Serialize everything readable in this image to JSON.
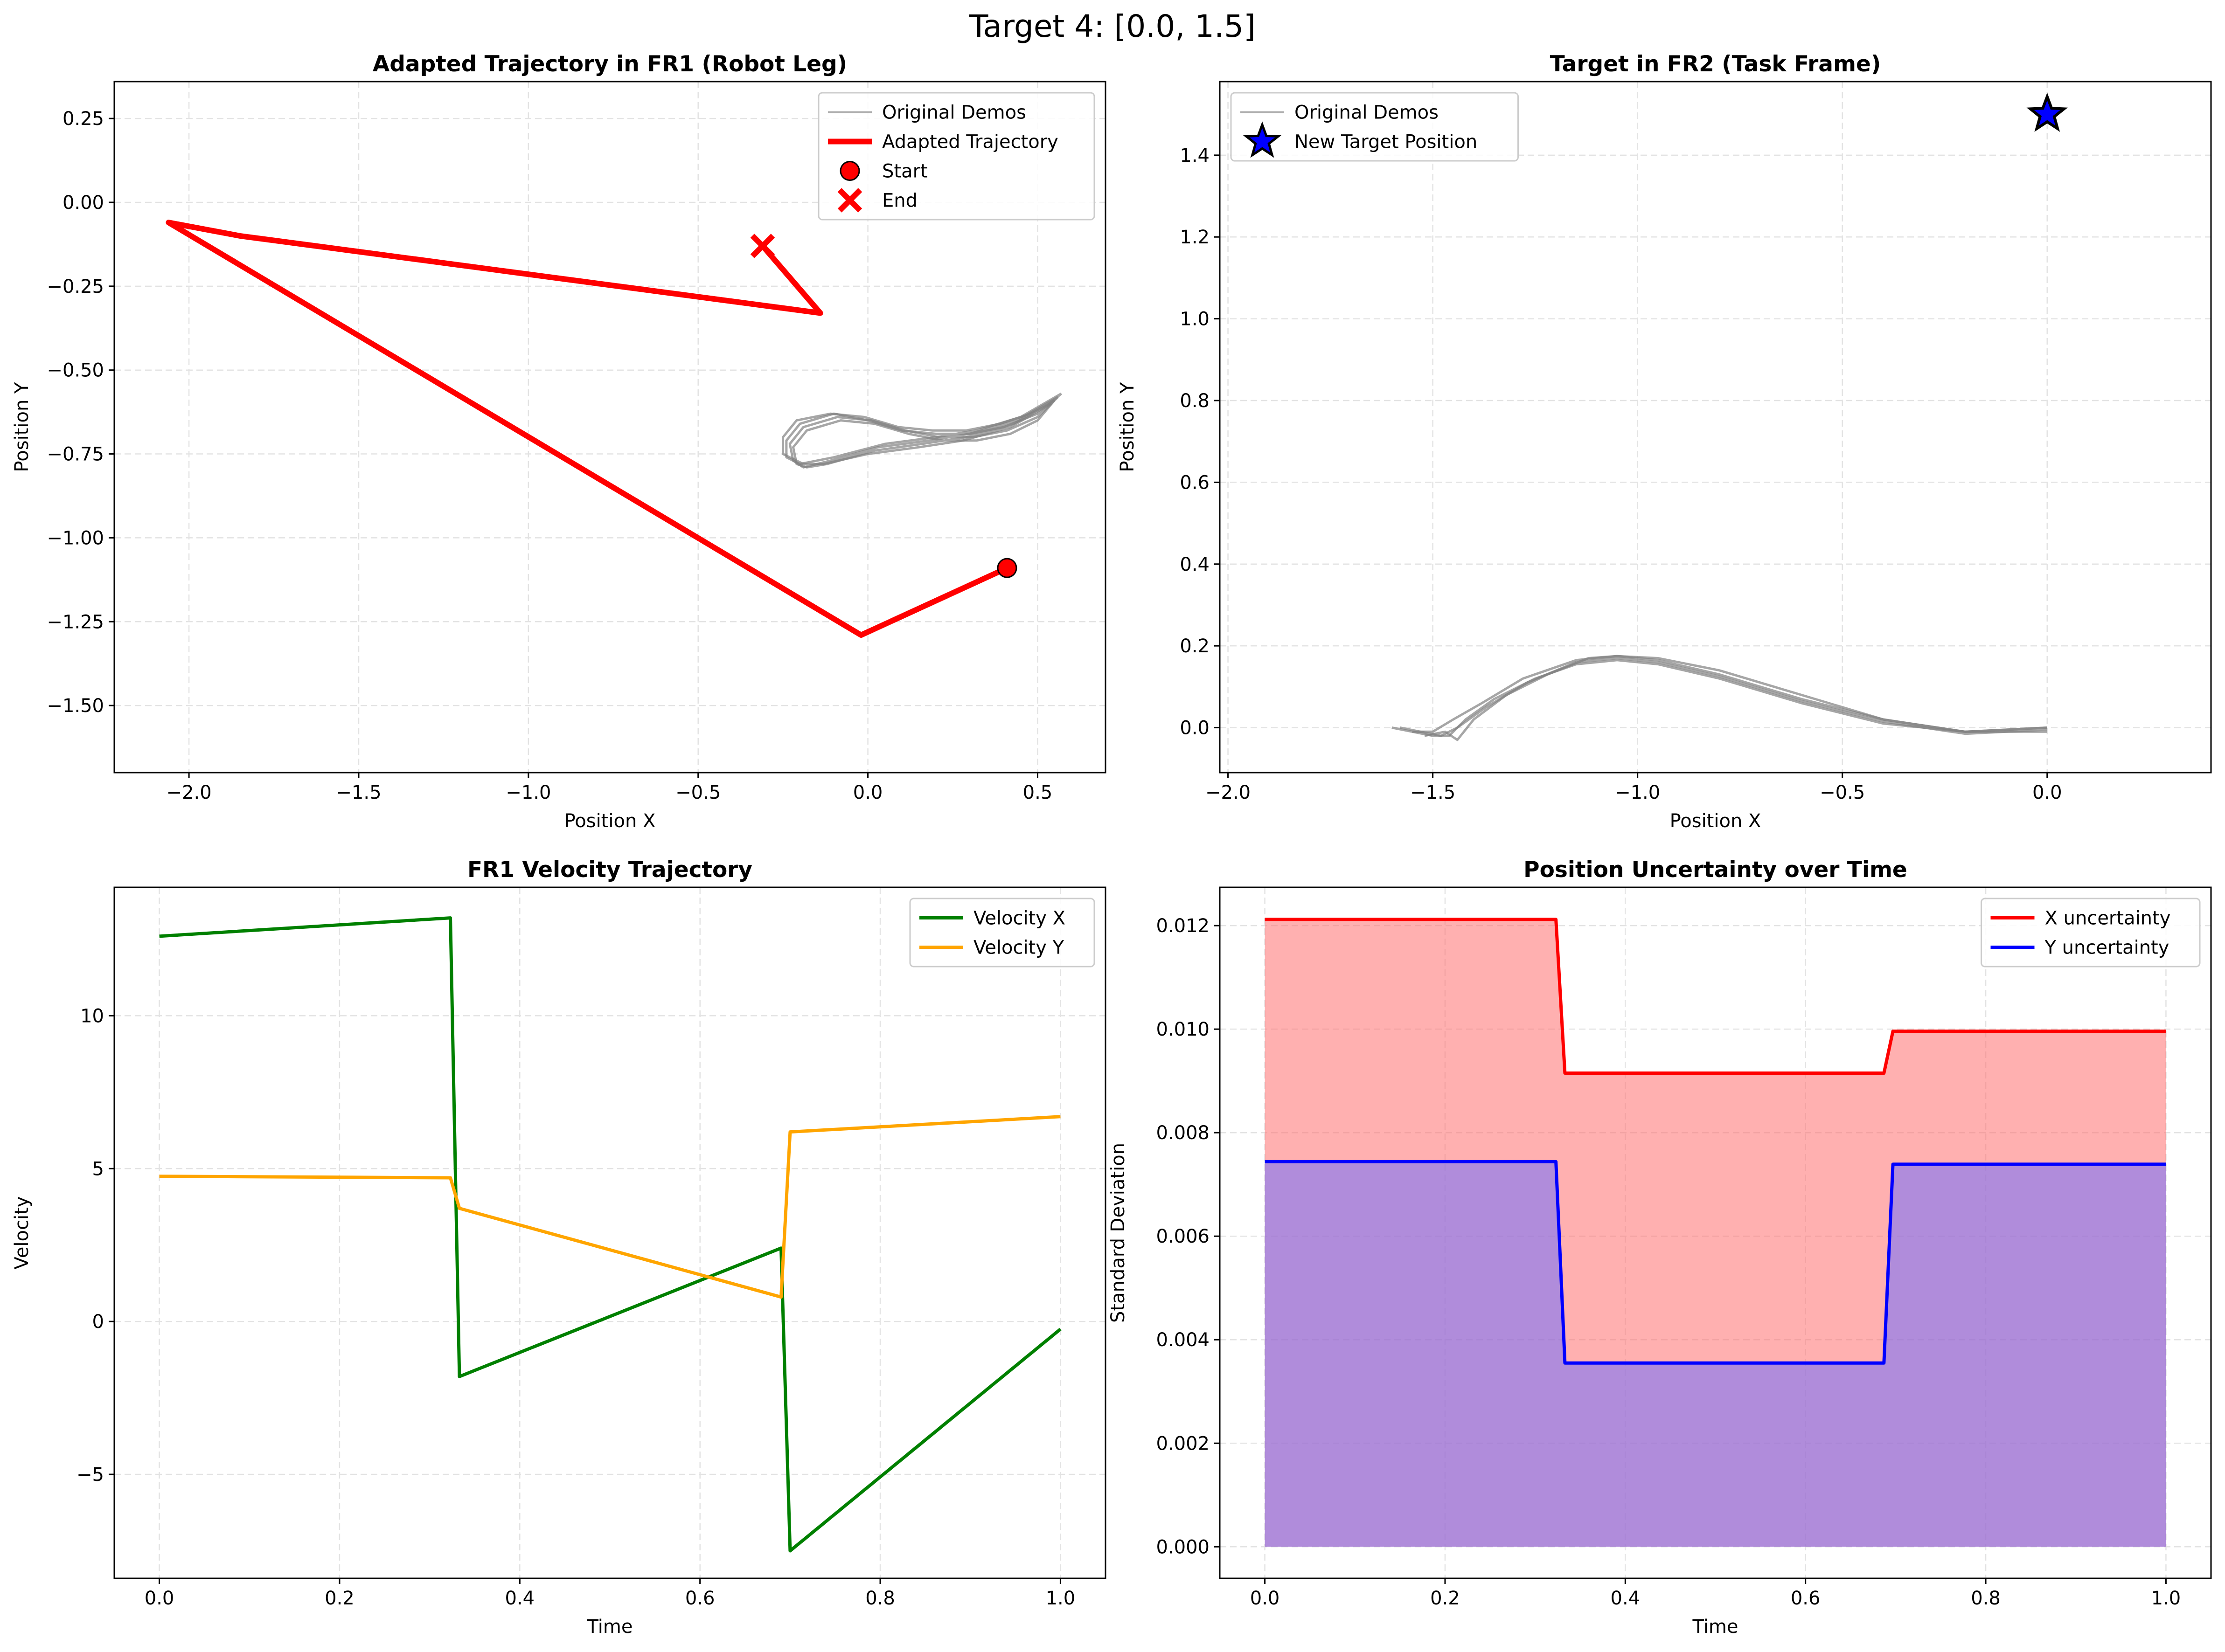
{
  "figure": {
    "suptitle": "Target 4: [0.0, 1.5]"
  },
  "chart_data": [
    {
      "id": "p1",
      "type": "line",
      "title": "Adapted Trajectory in FR1 (Robot Leg)",
      "xlabel": "Position X",
      "ylabel": "Position Y",
      "xlim": [
        -2.22,
        0.7
      ],
      "ylim": [
        -1.7,
        0.36
      ],
      "xticks": [
        -2.0,
        -1.5,
        -1.0,
        -0.5,
        0.0,
        0.5
      ],
      "xtick_labels": [
        "−2.0",
        "−1.5",
        "−1.0",
        "−0.5",
        "0.0",
        "0.5"
      ],
      "yticks": [
        0.25,
        0.0,
        -0.25,
        -0.5,
        -0.75,
        -1.0,
        -1.25,
        -1.5
      ],
      "ytick_labels": [
        "0.25",
        "0.00",
        "−0.25",
        "−0.50",
        "−0.75",
        "−1.00",
        "−1.25",
        "−1.50"
      ],
      "grid": true,
      "legend_position": "upper right",
      "legend": [
        {
          "label": "Original Demos",
          "kind": "line",
          "color": "#b0b0b0",
          "width": 4
        },
        {
          "label": "Adapted Trajectory",
          "kind": "line",
          "color": "#ff0000",
          "width": 12
        },
        {
          "label": "Start",
          "kind": "circle",
          "color": "#ff0000"
        },
        {
          "label": "End",
          "kind": "cross",
          "color": "#ff0000"
        }
      ],
      "demos": {
        "color": "#808080",
        "curves": [
          [
            [
              0.57,
              -0.57
            ],
            [
              0.45,
              -0.64
            ],
            [
              0.32,
              -0.68
            ],
            [
              0.2,
              -0.7
            ],
            [
              0.05,
              -0.72
            ],
            [
              -0.1,
              -0.76
            ],
            [
              -0.2,
              -0.78
            ],
            [
              -0.24,
              -0.76
            ],
            [
              -0.24,
              -0.71
            ],
            [
              -0.2,
              -0.66
            ],
            [
              -0.1,
              -0.63
            ],
            [
              0.0,
              -0.65
            ],
            [
              0.1,
              -0.68
            ],
            [
              0.2,
              -0.69
            ],
            [
              0.3,
              -0.69
            ],
            [
              0.4,
              -0.67
            ],
            [
              0.5,
              -0.63
            ],
            [
              0.57,
              -0.57
            ]
          ],
          [
            [
              0.56,
              -0.58
            ],
            [
              0.44,
              -0.65
            ],
            [
              0.3,
              -0.69
            ],
            [
              0.18,
              -0.71
            ],
            [
              0.03,
              -0.73
            ],
            [
              -0.11,
              -0.77
            ],
            [
              -0.19,
              -0.79
            ],
            [
              -0.22,
              -0.77
            ],
            [
              -0.23,
              -0.72
            ],
            [
              -0.19,
              -0.67
            ],
            [
              -0.09,
              -0.64
            ],
            [
              0.01,
              -0.65
            ],
            [
              0.11,
              -0.68
            ],
            [
              0.21,
              -0.7
            ],
            [
              0.31,
              -0.7
            ],
            [
              0.41,
              -0.68
            ],
            [
              0.5,
              -0.64
            ],
            [
              0.56,
              -0.58
            ]
          ],
          [
            [
              0.55,
              -0.59
            ],
            [
              0.43,
              -0.66
            ],
            [
              0.29,
              -0.7
            ],
            [
              0.16,
              -0.72
            ],
            [
              0.02,
              -0.74
            ],
            [
              -0.12,
              -0.78
            ],
            [
              -0.18,
              -0.79
            ],
            [
              -0.21,
              -0.78
            ],
            [
              -0.22,
              -0.73
            ],
            [
              -0.18,
              -0.68
            ],
            [
              -0.08,
              -0.65
            ],
            [
              0.02,
              -0.66
            ],
            [
              0.12,
              -0.69
            ],
            [
              0.22,
              -0.71
            ],
            [
              0.32,
              -0.71
            ],
            [
              0.42,
              -0.69
            ],
            [
              0.5,
              -0.65
            ],
            [
              0.55,
              -0.59
            ]
          ],
          [
            [
              0.54,
              -0.6
            ],
            [
              0.42,
              -0.67
            ],
            [
              0.28,
              -0.71
            ],
            [
              0.15,
              -0.73
            ],
            [
              0.0,
              -0.75
            ],
            [
              -0.13,
              -0.78
            ],
            [
              -0.19,
              -0.78
            ],
            [
              -0.25,
              -0.75
            ],
            [
              -0.25,
              -0.7
            ],
            [
              -0.21,
              -0.65
            ],
            [
              -0.11,
              -0.63
            ],
            [
              -0.01,
              -0.64
            ],
            [
              0.09,
              -0.67
            ],
            [
              0.19,
              -0.68
            ],
            [
              0.29,
              -0.68
            ],
            [
              0.39,
              -0.66
            ],
            [
              0.48,
              -0.63
            ],
            [
              0.54,
              -0.6
            ]
          ]
        ]
      },
      "adapted": {
        "color": "#ff0000",
        "points": [
          [
            0.41,
            -1.09
          ],
          [
            -0.02,
            -1.29
          ],
          [
            -2.06,
            -0.06
          ],
          [
            -1.85,
            -0.1
          ],
          [
            -0.14,
            -0.33
          ],
          [
            -0.31,
            -0.13
          ]
        ]
      },
      "start": [
        0.41,
        -1.09
      ],
      "end": [
        -0.31,
        -0.13
      ]
    },
    {
      "id": "p2",
      "type": "line",
      "title": "Target in FR2 (Task Frame)",
      "xlabel": "Position X",
      "ylabel": "Position Y",
      "xlim": [
        -2.02,
        0.4
      ],
      "ylim": [
        -0.11,
        1.58
      ],
      "xticks": [
        -2.0,
        -1.5,
        -1.0,
        -0.5,
        0.0
      ],
      "xtick_labels": [
        "−2.0",
        "−1.5",
        "−1.0",
        "−0.5",
        "0.0"
      ],
      "yticks": [
        0.0,
        0.2,
        0.4,
        0.6,
        0.8,
        1.0,
        1.2,
        1.4
      ],
      "ytick_labels": [
        "0.0",
        "0.2",
        "0.4",
        "0.6",
        "0.8",
        "1.0",
        "1.2",
        "1.4"
      ],
      "grid": true,
      "legend_position": "upper left",
      "legend": [
        {
          "label": "Original Demos",
          "kind": "line",
          "color": "#b0b0b0",
          "width": 4
        },
        {
          "label": "New Target Position",
          "kind": "star",
          "color": "#0000ff"
        }
      ],
      "demos": {
        "color": "#808080",
        "curves": [
          [
            [
              0.0,
              0.0
            ],
            [
              -0.2,
              -0.01
            ],
            [
              -0.4,
              0.02
            ],
            [
              -0.6,
              0.07
            ],
            [
              -0.8,
              0.13
            ],
            [
              -0.95,
              0.165
            ],
            [
              -1.05,
              0.175
            ],
            [
              -1.15,
              0.165
            ],
            [
              -1.28,
              0.12
            ],
            [
              -1.38,
              0.06
            ],
            [
              -1.45,
              0.02
            ],
            [
              -1.5,
              -0.01
            ],
            [
              -1.55,
              -0.01
            ],
            [
              -1.6,
              0.0
            ]
          ],
          [
            [
              0.0,
              -0.01
            ],
            [
              -0.2,
              -0.01
            ],
            [
              -0.4,
              0.01
            ],
            [
              -0.6,
              0.06
            ],
            [
              -0.8,
              0.12
            ],
            [
              -0.95,
              0.155
            ],
            [
              -1.05,
              0.165
            ],
            [
              -1.15,
              0.155
            ],
            [
              -1.25,
              0.12
            ],
            [
              -1.35,
              0.07
            ],
            [
              -1.42,
              0.02
            ],
            [
              -1.46,
              -0.02
            ],
            [
              -1.5,
              -0.02
            ],
            [
              -1.55,
              -0.01
            ]
          ],
          [
            [
              0.0,
              0.0
            ],
            [
              -0.2,
              -0.01
            ],
            [
              -0.4,
              0.02
            ],
            [
              -0.6,
              0.08
            ],
            [
              -0.8,
              0.14
            ],
            [
              -0.95,
              0.17
            ],
            [
              -1.05,
              0.175
            ],
            [
              -1.12,
              0.17
            ],
            [
              -1.22,
              0.13
            ],
            [
              -1.32,
              0.08
            ],
            [
              -1.4,
              0.02
            ],
            [
              -1.44,
              -0.03
            ],
            [
              -1.47,
              -0.01
            ],
            [
              -1.52,
              -0.02
            ]
          ],
          [
            [
              0.0,
              -0.005
            ],
            [
              -0.2,
              -0.015
            ],
            [
              -0.4,
              0.015
            ],
            [
              -0.6,
              0.065
            ],
            [
              -0.8,
              0.125
            ],
            [
              -0.95,
              0.16
            ],
            [
              -1.05,
              0.17
            ],
            [
              -1.15,
              0.16
            ],
            [
              -1.27,
              0.11
            ],
            [
              -1.37,
              0.05
            ],
            [
              -1.44,
              0.0
            ],
            [
              -1.48,
              -0.02
            ],
            [
              -1.53,
              -0.01
            ],
            [
              -1.58,
              0.0
            ]
          ]
        ]
      },
      "target": [
        0.0,
        1.5
      ]
    },
    {
      "id": "p3",
      "type": "line",
      "title": "FR1 Velocity Trajectory",
      "xlabel": "Time",
      "ylabel": "Velocity",
      "xlim": [
        -0.05,
        1.05
      ],
      "ylim": [
        -8.4,
        14.2
      ],
      "xticks": [
        0.0,
        0.2,
        0.4,
        0.6,
        0.8,
        1.0
      ],
      "xtick_labels": [
        "0.0",
        "0.2",
        "0.4",
        "0.6",
        "0.8",
        "1.0"
      ],
      "yticks": [
        10,
        5,
        0,
        -5
      ],
      "ytick_labels": [
        "10",
        "5",
        "0",
        "−5"
      ],
      "grid": true,
      "legend_position": "upper right",
      "series": [
        {
          "name": "Velocity X",
          "color": "#008000",
          "x": [
            0.0,
            0.323,
            0.333,
            0.69,
            0.7,
            1.0
          ],
          "y": [
            12.6,
            13.2,
            -1.8,
            2.4,
            -7.5,
            -0.25
          ]
        },
        {
          "name": "Velocity Y",
          "color": "#ffa500",
          "x": [
            0.0,
            0.323,
            0.333,
            0.69,
            0.7,
            1.0
          ],
          "y": [
            4.75,
            4.7,
            3.7,
            0.8,
            6.2,
            6.7
          ]
        }
      ]
    },
    {
      "id": "p4",
      "type": "area",
      "title": "Position Uncertainty over Time",
      "xlabel": "Time",
      "ylabel": "Standard Deviation",
      "xlim": [
        -0.05,
        1.05
      ],
      "ylim": [
        -0.00061,
        0.01274
      ],
      "xticks": [
        0.0,
        0.2,
        0.4,
        0.6,
        0.8,
        1.0
      ],
      "xtick_labels": [
        "0.0",
        "0.2",
        "0.4",
        "0.6",
        "0.8",
        "1.0"
      ],
      "yticks": [
        0.0,
        0.002,
        0.004,
        0.006,
        0.008,
        0.01,
        0.012
      ],
      "ytick_labels": [
        "0.000",
        "0.002",
        "0.004",
        "0.006",
        "0.008",
        "0.010",
        "0.012"
      ],
      "grid": true,
      "legend_position": "upper right",
      "series": [
        {
          "name": "X uncertainty",
          "color": "#ff0000",
          "fill": "#ff7070",
          "x": [
            0.0,
            0.323,
            0.333,
            0.687,
            0.697,
            1.0
          ],
          "y": [
            0.01212,
            0.01212,
            0.00915,
            0.00915,
            0.00996,
            0.00996
          ]
        },
        {
          "name": "Y uncertainty",
          "color": "#0000ff",
          "fill": "#7070ff",
          "x": [
            0.0,
            0.323,
            0.333,
            0.687,
            0.697,
            1.0
          ],
          "y": [
            0.00744,
            0.00744,
            0.00355,
            0.00355,
            0.00739,
            0.00739
          ]
        }
      ]
    }
  ]
}
